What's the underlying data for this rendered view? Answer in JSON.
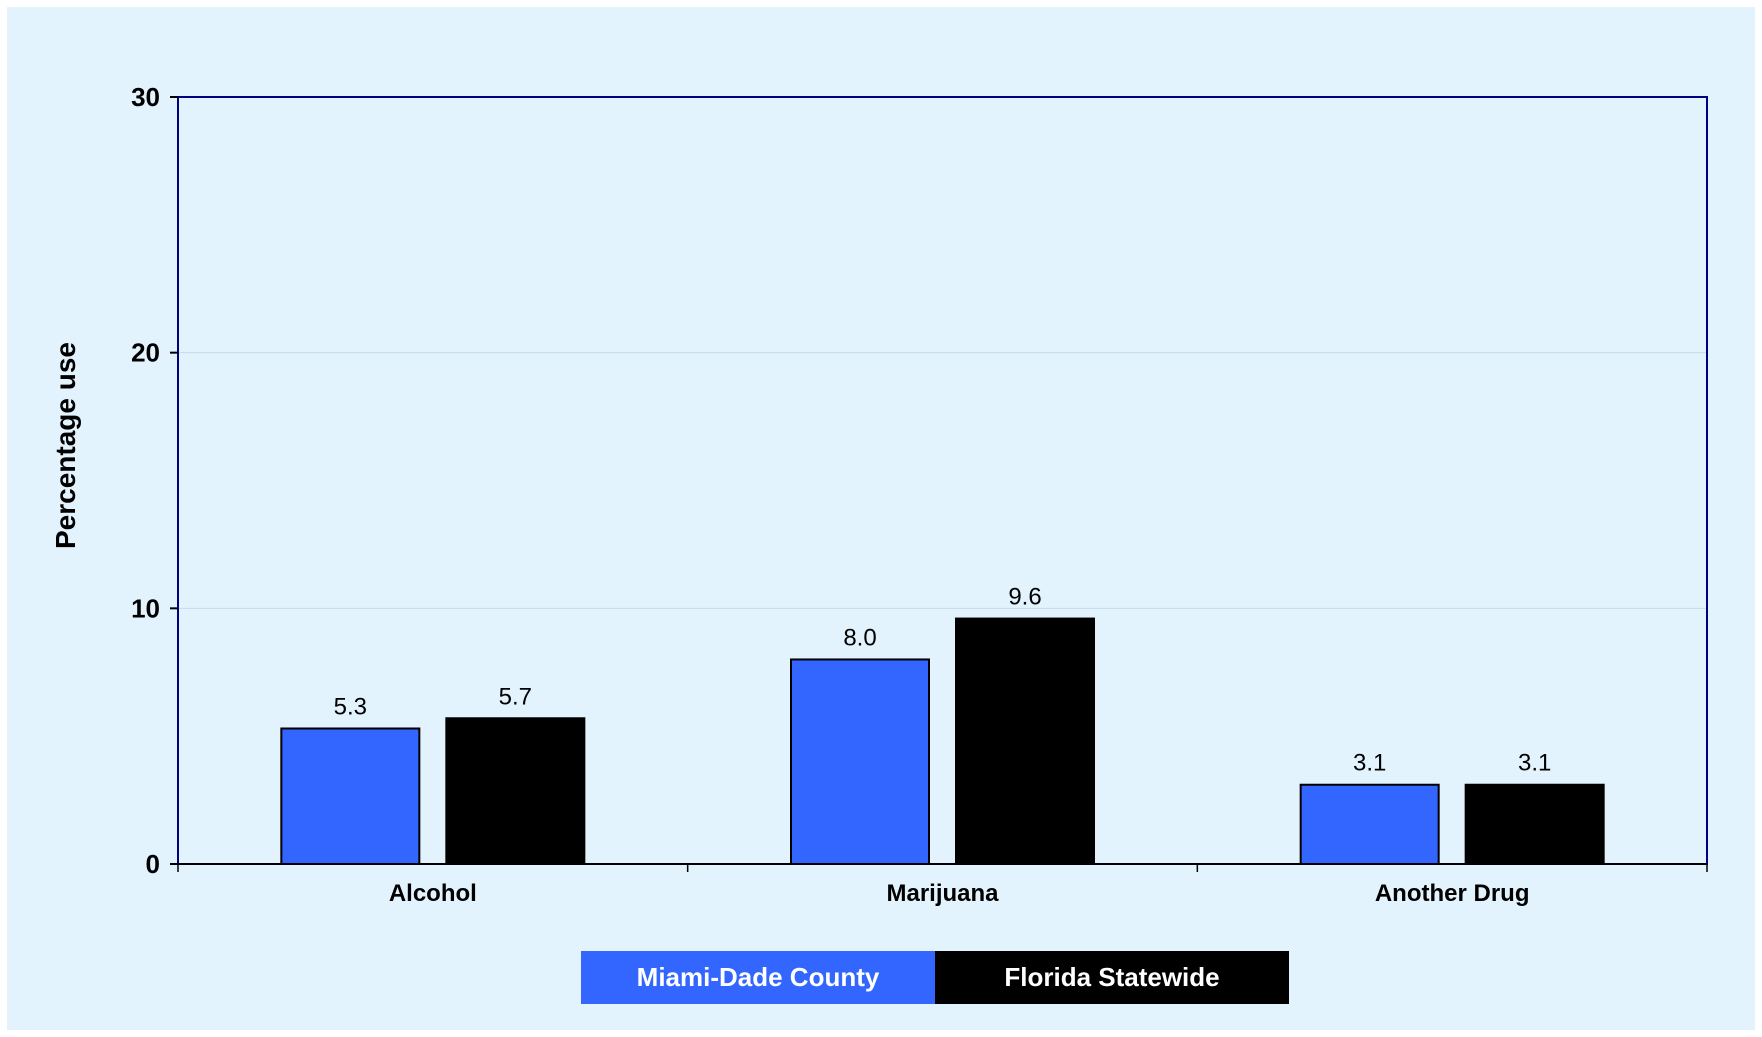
{
  "chart_data": {
    "type": "bar",
    "categories": [
      "Alcohol",
      "Marijuana",
      "Another Drug"
    ],
    "series": [
      {
        "name": "Miami-Dade County",
        "values": [
          5.3,
          8.0,
          3.1
        ],
        "color": "#3366ff",
        "labels": [
          "5.3",
          "8.0",
          "3.1"
        ]
      },
      {
        "name": "Florida Statewide",
        "values": [
          5.7,
          9.6,
          3.1
        ],
        "color": "#000000",
        "labels": [
          "5.7",
          "9.6",
          "3.1"
        ]
      }
    ],
    "ylabel": "Percentage use",
    "ylim": [
      0,
      30
    ],
    "yticks": [
      0,
      10,
      20,
      30
    ],
    "ytick_labels": [
      "0",
      "10",
      "20",
      "30"
    ],
    "grid": true,
    "legend_position": "bottom-center",
    "background_color": "#e2f3fd",
    "axis_color": "#000080"
  }
}
